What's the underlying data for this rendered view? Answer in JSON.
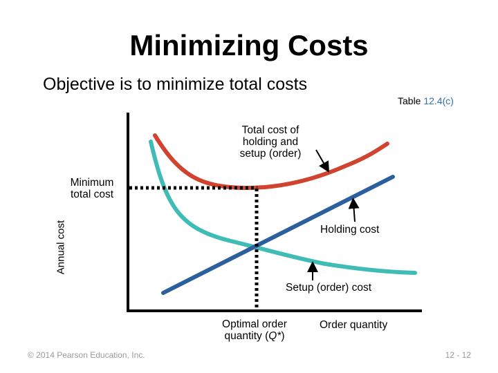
{
  "title": "Minimizing Costs",
  "subtitle": "Objective is to minimize total costs",
  "table_ref": {
    "prefix": "Table ",
    "number": "12.4(c)"
  },
  "labels": {
    "total_cost_lines": [
      "Total cost of",
      "holding and",
      "setup (order)"
    ],
    "minimum_total_cost_lines": [
      "Minimum",
      "total cost"
    ],
    "holding_cost": "Holding cost",
    "setup_cost": "Setup (order) cost",
    "optimal_order_line1": "Optimal order",
    "optimal_order_line2_prefix": "quantity (",
    "optimal_order_symbol": "Q*",
    "optimal_order_line2_suffix": ")",
    "order_quantity": "Order quantity",
    "annual_cost": "Annual cost"
  },
  "footer": {
    "copyright": "© 2014 Pearson Education, Inc.",
    "page": "12 - 12"
  },
  "colors": {
    "total_cost": "#d0432f",
    "holding_cost": "#2c5f9e",
    "setup_cost": "#3fbcb5",
    "axes": "#000000",
    "accent_text": "#2f6fb5",
    "footer_text": "#9a9a9a"
  }
}
